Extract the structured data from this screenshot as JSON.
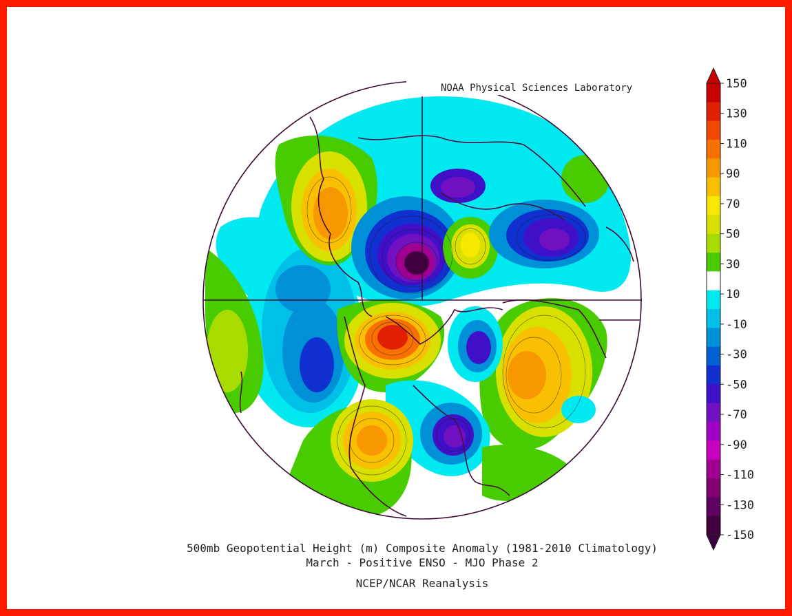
{
  "map": {
    "credit": "NOAA Physical Sciences Laboratory",
    "title_line1": "500mb Geopotential Height (m) Composite Anomaly (1981-2010 Climatology)",
    "title_line2": "March - Positive ENSO - MJO Phase 2",
    "source": "NCEP/NCAR Reanalysis"
  },
  "colorbar": {
    "labels": [
      "150",
      "130",
      "110",
      "90",
      "70",
      "50",
      "30",
      "10",
      "-10",
      "-30",
      "-50",
      "-70",
      "-90",
      "-110",
      "-130",
      "-150"
    ],
    "colors": [
      "#c80000",
      "#e02000",
      "#f04800",
      "#f87000",
      "#f89800",
      "#f8c000",
      "#f8e800",
      "#d8e000",
      "#a8dc00",
      "#48cc00",
      "#ffffff",
      "#00e8f0",
      "#00c0e8",
      "#0090d8",
      "#0060d0",
      "#1030d0",
      "#4010c8",
      "#7010c0",
      "#a000c0",
      "#c800c0",
      "#a00090",
      "#800070",
      "#600060",
      "#400040"
    ],
    "top_color": "#c80000",
    "bottom_color": "#3a0040"
  },
  "palette": {
    "frame": "#ff1a00",
    "coast": "#4a1040"
  }
}
